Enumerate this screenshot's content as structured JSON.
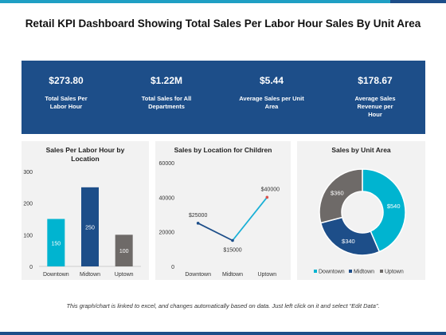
{
  "title": "Retail KPI Dashboard Showing Total Sales Per Labor Hour Sales By Unit Area",
  "colors": {
    "accent": "#1f9fc4",
    "navy": "#1d4e89",
    "gray": "#6e6a68",
    "red": "#d9534f"
  },
  "kpis": [
    {
      "value": "$273.80",
      "label": "Total Sales Per Labor Hour"
    },
    {
      "value": "$1.22M",
      "label": "Total Sales for All Departments"
    },
    {
      "value": "$5.44",
      "label": "Average Sales per Unit Area"
    },
    {
      "value": "$178.67",
      "label": "Average Sales Revenue per Hour"
    }
  ],
  "chart_data": [
    {
      "type": "bar",
      "title": "Sales Per Labor Hour by Location",
      "categories": [
        "Downtown",
        "Midtown",
        "Uptown"
      ],
      "values": [
        150,
        250,
        100
      ],
      "value_labels": [
        "150",
        "250",
        "100"
      ],
      "colors": [
        "#00b4d0",
        "#1d4e89",
        "#6e6a68"
      ],
      "ylim": [
        0,
        300
      ],
      "yticks": [
        "0",
        "100",
        "200",
        "300"
      ],
      "grid": false
    },
    {
      "type": "line",
      "title": "Sales by Location for Children",
      "categories": [
        "Downtown",
        "Midtown",
        "Uptown"
      ],
      "values": [
        25000,
        15000,
        40000
      ],
      "value_labels": [
        "$25000",
        "$15000",
        "$40000"
      ],
      "ylim": [
        0,
        60000
      ],
      "yticks": [
        "0",
        "20000",
        "40000",
        "60000"
      ],
      "grid": false
    },
    {
      "type": "pie",
      "title": "Sales by Unit Area",
      "categories": [
        "Downtown",
        "Midtown",
        "Uptown"
      ],
      "values": [
        540,
        340,
        360
      ],
      "value_labels": [
        "$540",
        "$340",
        "$360"
      ],
      "colors": [
        "#00b4d0",
        "#1d4e89",
        "#6e6a68"
      ],
      "legend": "bottom"
    }
  ],
  "footer": "This graph/chart is linked to excel, and changes automatically based on data. Just left click on it and select “Edit Data”."
}
